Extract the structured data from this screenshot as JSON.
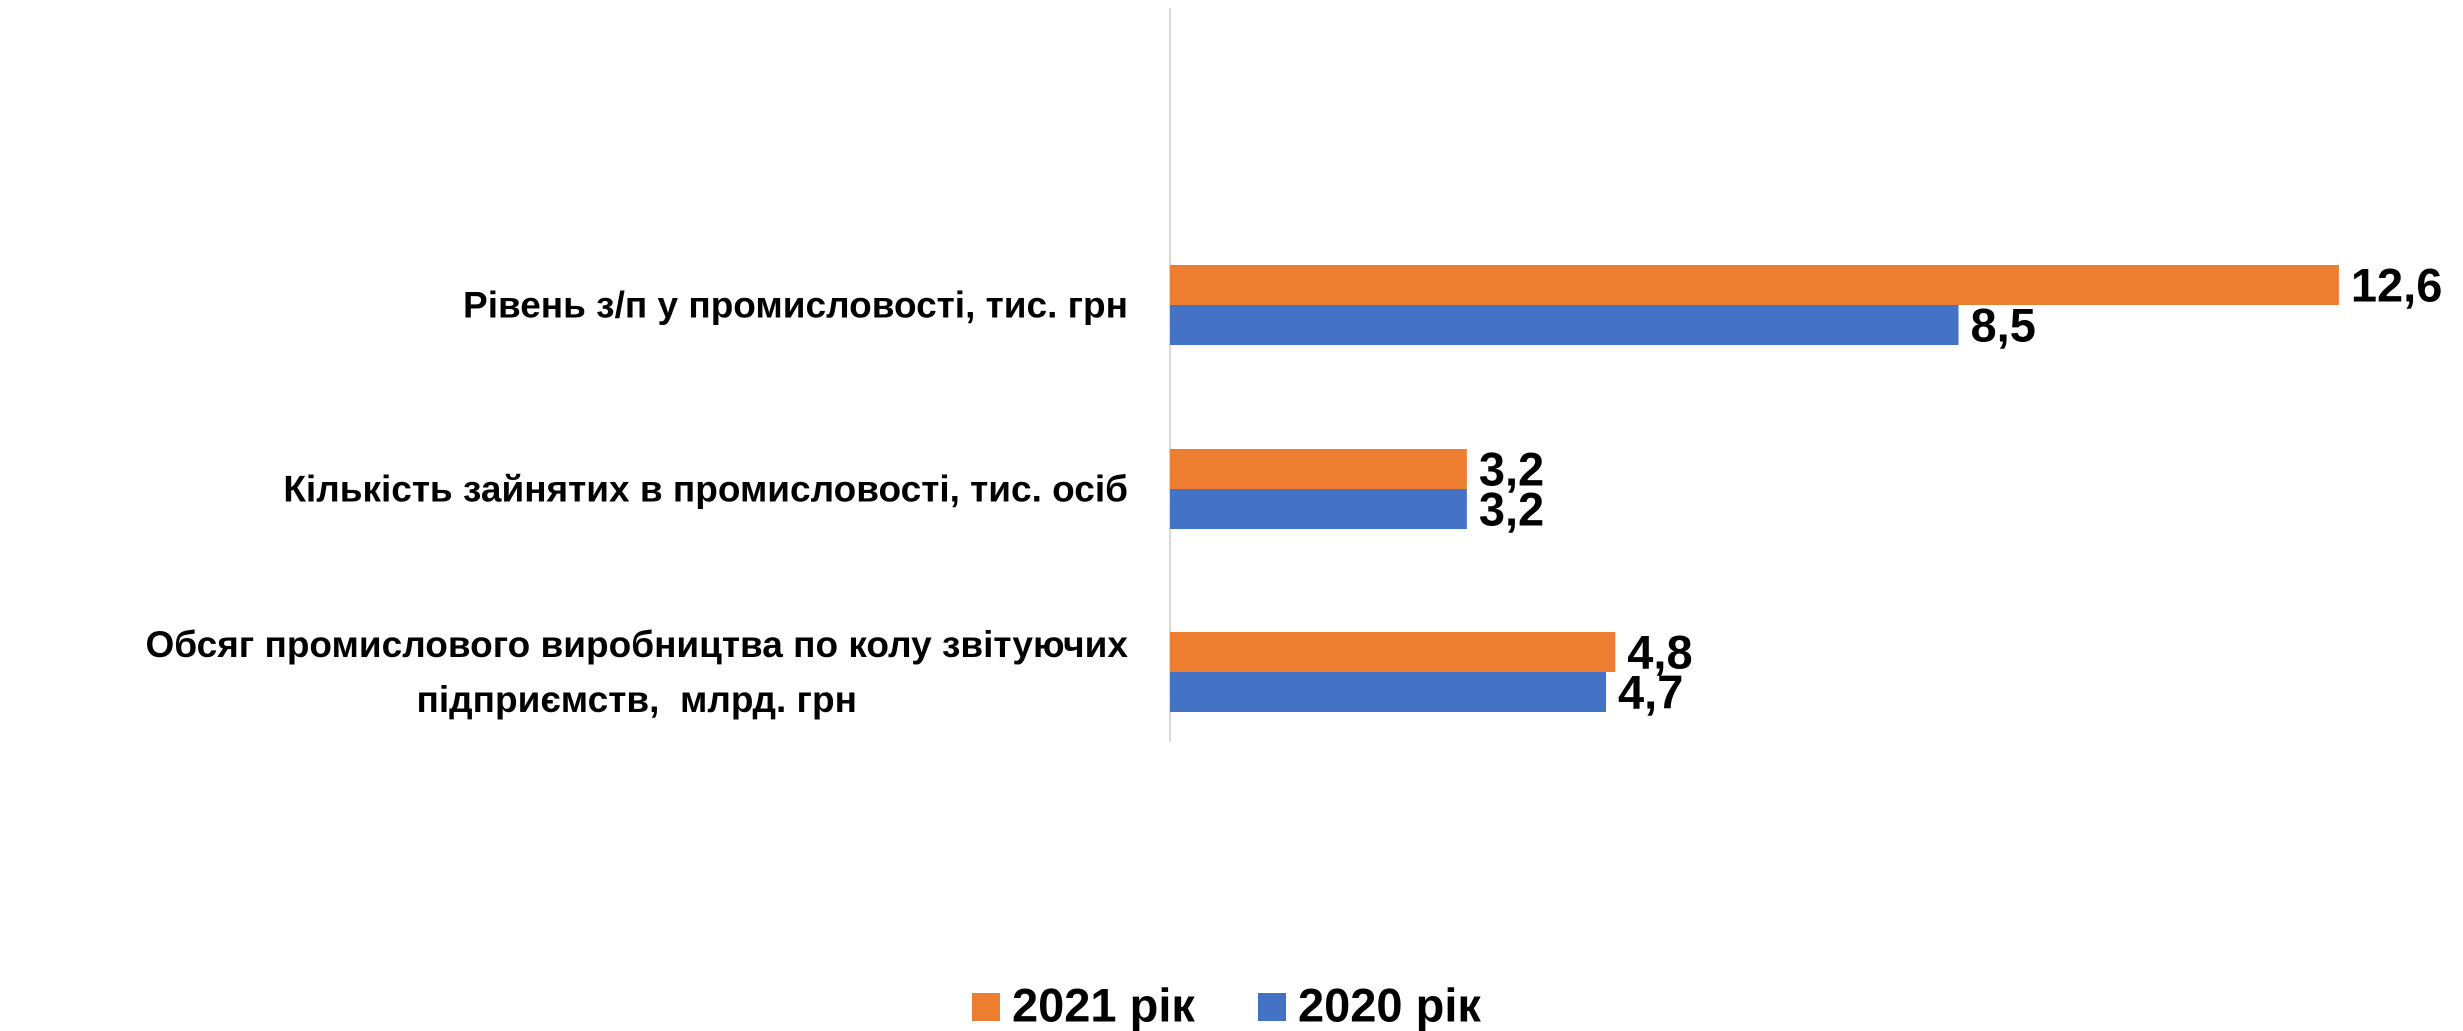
{
  "chart_data": {
    "type": "barh",
    "categories": [
      "Рівень з/п у промисловості, тис. грн",
      "Кількість зайнятих в промисловості, тис. осіб",
      "Обсяг промислового виробництва по колу звітуючих\nпідприємств,  млрд. грн"
    ],
    "series": [
      {
        "name": "2021 рік",
        "color": "#ED7D31",
        "values": [
          12.6,
          3.2,
          4.8
        ],
        "value_labels": [
          "12,6",
          "3,2",
          "4,8"
        ]
      },
      {
        "name": "2020 рік",
        "color": "#4472C4",
        "values": [
          8.5,
          3.2,
          4.7
        ],
        "value_labels": [
          "8,5",
          "3,2",
          "4,7"
        ]
      }
    ],
    "xlim": [
      0,
      13
    ],
    "legend": "bottom"
  }
}
